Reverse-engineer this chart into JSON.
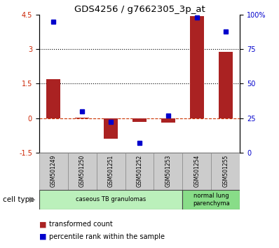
{
  "title": "GDS4256 / g7662305_3p_at",
  "samples": [
    "GSM501249",
    "GSM501250",
    "GSM501251",
    "GSM501252",
    "GSM501253",
    "GSM501254",
    "GSM501255"
  ],
  "transformed_count": [
    1.7,
    0.02,
    -0.9,
    -0.15,
    -0.2,
    4.45,
    2.9
  ],
  "percentile_rank": [
    95,
    30,
    22,
    7,
    27,
    98,
    88
  ],
  "ylim_left": [
    -1.5,
    4.5
  ],
  "ylim_right": [
    0,
    100
  ],
  "yticks_left": [
    -1.5,
    0,
    1.5,
    3,
    4.5
  ],
  "yticks_right": [
    0,
    25,
    50,
    75,
    100
  ],
  "hlines": [
    1.5,
    3.0
  ],
  "bar_color": "#aa2222",
  "dot_color": "#0000cc",
  "cell_groups": [
    {
      "label": "caseous TB granulomas",
      "samples": [
        0,
        1,
        2,
        3,
        4
      ],
      "color": "#bbf0bb"
    },
    {
      "label": "normal lung\nparenchyma",
      "samples": [
        5,
        6
      ],
      "color": "#88dd88"
    }
  ],
  "legend_bar_label": "transformed count",
  "legend_dot_label": "percentile rank within the sample",
  "cell_type_label": "cell type",
  "bg_color": "#ffffff",
  "plot_bg_color": "#ffffff",
  "tick_label_color_left": "#cc2200",
  "tick_label_color_right": "#0000cc",
  "dotted_line_color": "#000000",
  "dashed_line_color": "#cc3300",
  "sample_box_color": "#cccccc",
  "bar_width": 0.5
}
